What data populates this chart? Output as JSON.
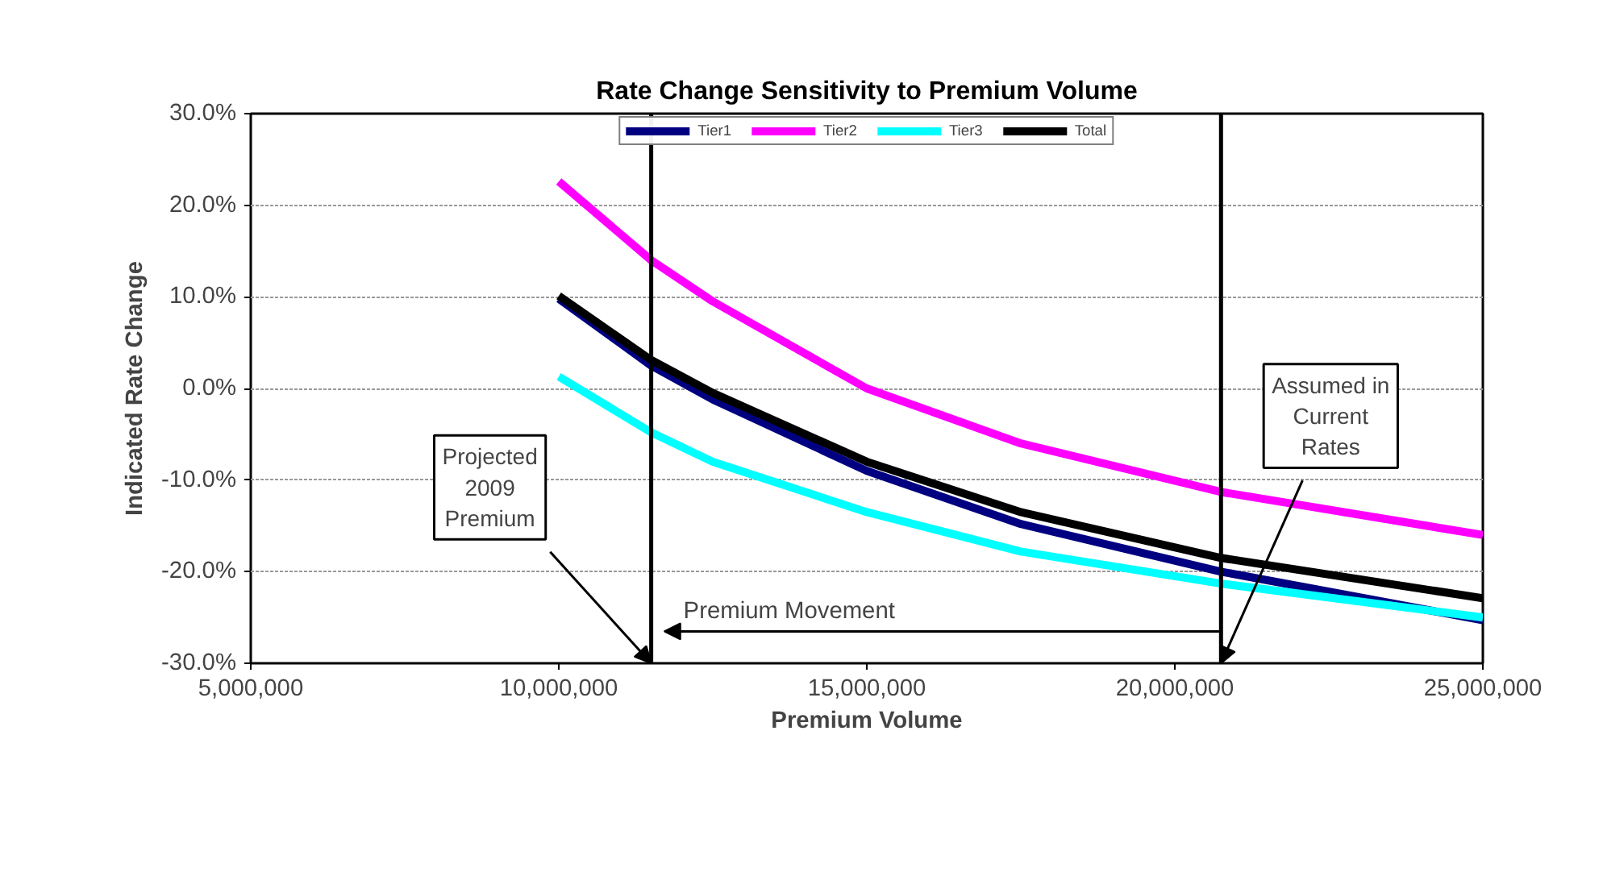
{
  "chart_data": {
    "type": "line",
    "title": "Rate Change Sensitivity to Premium Volume",
    "xlabel": "Premium Volume",
    "ylabel": "Indicated Rate Change",
    "x": [
      10000000,
      11500000,
      12500000,
      15000000,
      17500000,
      20750000,
      25000000
    ],
    "series": [
      {
        "name": "Tier1",
        "color": "#000080",
        "values": [
          9.8,
          2.5,
          -1.2,
          -9,
          -14.8,
          -20,
          -25.3
        ]
      },
      {
        "name": "Tier2",
        "color": "#ff00ff",
        "values": [
          22.6,
          14,
          9.5,
          0,
          -6,
          -11.3,
          -16
        ]
      },
      {
        "name": "Tier3",
        "color": "#00ffff",
        "values": [
          1.3,
          -4.8,
          -8,
          -13.5,
          -17.8,
          -21.3,
          -25
        ]
      },
      {
        "name": "Total",
        "color": "#000000",
        "values": [
          10.1,
          3.1,
          -0.5,
          -8,
          -13.5,
          -18.5,
          -22.9
        ]
      }
    ],
    "xlim": [
      5000000,
      25000000
    ],
    "xticks": [
      {
        "value": 5000000,
        "label": "5,000,000"
      },
      {
        "value": 10000000,
        "label": "10,000,000"
      },
      {
        "value": 15000000,
        "label": "15,000,000"
      },
      {
        "value": 20000000,
        "label": "20,000,000"
      },
      {
        "value": 25000000,
        "label": "25,000,000"
      }
    ],
    "ylim": [
      -30,
      30
    ],
    "yticks": [
      {
        "value": -30,
        "label": "-30.0%"
      },
      {
        "value": -20,
        "label": "-20.0%"
      },
      {
        "value": -10,
        "label": "-10.0%"
      },
      {
        "value": 0,
        "label": "0.0%"
      },
      {
        "value": 10,
        "label": "10.0%"
      },
      {
        "value": 20,
        "label": "20.0%"
      },
      {
        "value": 30,
        "label": "30.0%"
      }
    ],
    "ref_lines": [
      {
        "axis": "x",
        "value": 11500000,
        "label": "Projected\n2009\nPremium",
        "color": "#000000"
      },
      {
        "axis": "x",
        "value": 20750000,
        "label": "Assumed in\nCurrent\nRates",
        "color": "#000000"
      }
    ],
    "annotations": [
      "Premium Movement"
    ],
    "grid": "y",
    "legend": "top",
    "marker": "none",
    "line_style": "solid"
  }
}
